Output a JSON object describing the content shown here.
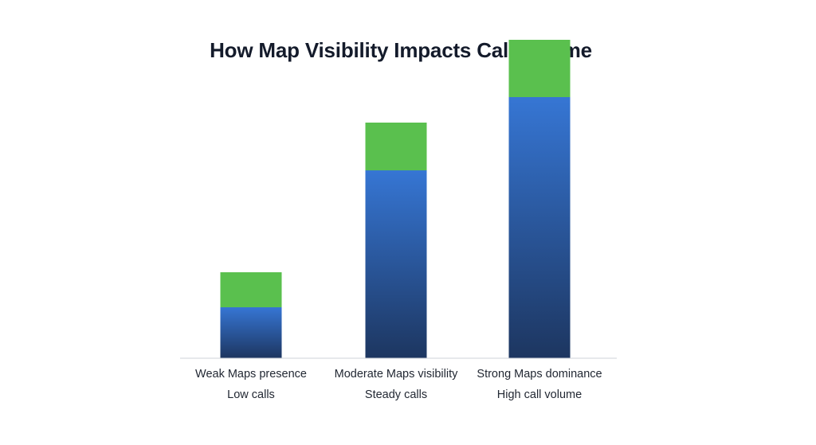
{
  "chart_data": {
    "type": "bar",
    "stacked": true,
    "title": "How Map Visibility Impacts Call Volume",
    "xlabel": "",
    "ylabel": "",
    "ylim": [
      0,
      100
    ],
    "grid": false,
    "categories": [
      [
        "Weak Maps presence",
        "Low calls"
      ],
      [
        "Moderate Maps visibility",
        "Steady calls"
      ],
      [
        "Strong Maps dominance",
        "High call volume"
      ]
    ],
    "series": [
      {
        "values": [
          16,
          59,
          82
        ]
      },
      {
        "values": [
          11,
          15,
          18
        ]
      }
    ],
    "colors": {
      "base_top": "#3676d4",
      "base_bottom": "#1d3660",
      "top": "#5ac04e",
      "axis": "#cfd3da"
    }
  }
}
